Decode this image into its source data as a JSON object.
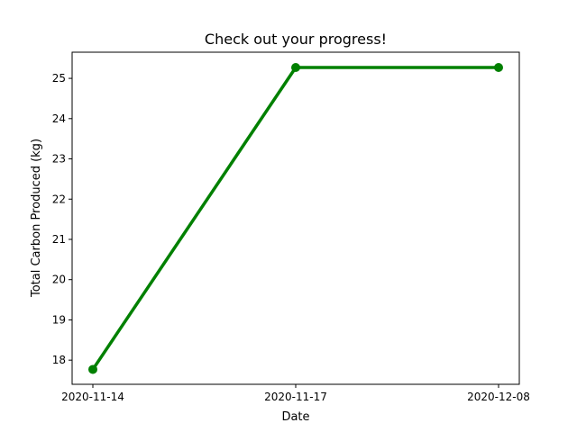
{
  "chart_data": {
    "type": "line",
    "title": "Check out your progress!",
    "xlabel": "Date",
    "ylabel": "Total Carbon Produced (kg)",
    "categories": [
      "2020-11-14",
      "2020-11-17",
      "2020-12-08"
    ],
    "series": [
      {
        "values": [
          17.77,
          25.27,
          25.27
        ],
        "color": "#008000",
        "marker": "circle"
      }
    ],
    "yticks": [
      18,
      19,
      20,
      21,
      22,
      23,
      24,
      25
    ],
    "ylim": [
      17.4,
      25.65
    ],
    "grid": false,
    "legend": false
  }
}
